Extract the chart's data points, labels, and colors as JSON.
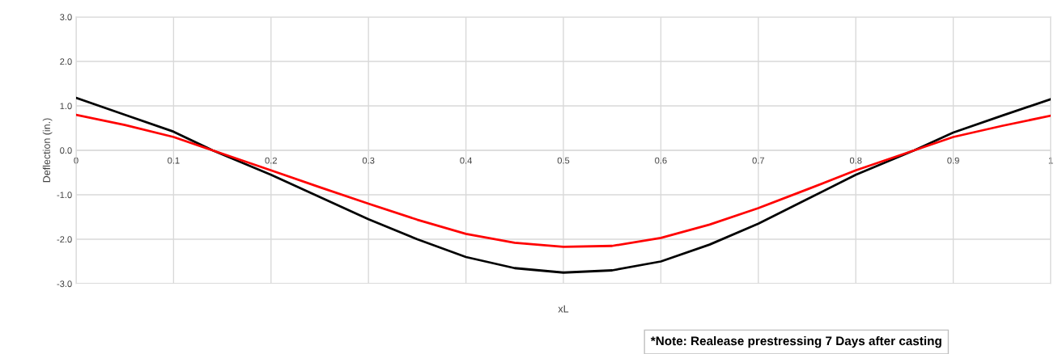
{
  "chart_data": {
    "type": "line",
    "xlabel": "xL",
    "ylabel": "Deflection (in.)",
    "x": [
      0,
      0.05,
      0.1,
      0.14,
      0.2,
      0.25,
      0.3,
      0.35,
      0.4,
      0.45,
      0.5,
      0.55,
      0.6,
      0.65,
      0.7,
      0.75,
      0.8,
      0.86,
      0.9,
      0.95,
      1
    ],
    "series": [
      {
        "color": "#000000",
        "values": [
          1.18,
          0.8,
          0.42,
          0.0,
          -0.55,
          -1.05,
          -1.55,
          -2.0,
          -2.4,
          -2.65,
          -2.75,
          -2.7,
          -2.5,
          -2.12,
          -1.65,
          -1.1,
          -0.55,
          0.0,
          0.4,
          0.78,
          1.15
        ]
      },
      {
        "color": "#ff0000",
        "values": [
          0.8,
          0.57,
          0.3,
          0.0,
          -0.45,
          -0.83,
          -1.2,
          -1.56,
          -1.88,
          -2.08,
          -2.17,
          -2.15,
          -1.97,
          -1.67,
          -1.3,
          -0.88,
          -0.45,
          0.0,
          0.3,
          0.55,
          0.78
        ]
      }
    ],
    "xlim": [
      0,
      1
    ],
    "xticks": [
      0,
      0.1,
      0.2,
      0.3,
      0.4,
      0.5,
      0.6,
      0.7,
      0.8,
      0.9,
      1
    ],
    "ylim": [
      -3,
      3
    ],
    "yticks": [
      {
        "value": 3,
        "label": "3.0"
      },
      {
        "value": 2,
        "label": "2.0"
      },
      {
        "value": 1,
        "label": "1.0"
      },
      {
        "value": 0,
        "label": "0.0"
      },
      {
        "value": -1,
        "label": "-1.0"
      },
      {
        "value": -2,
        "label": "-2.0"
      },
      {
        "value": -3,
        "label": "-3.0"
      }
    ],
    "grid": true,
    "line_style": "solid",
    "marker": "none",
    "annotations": [
      "*Note: Realease prestressing 7 Days after casting"
    ]
  }
}
